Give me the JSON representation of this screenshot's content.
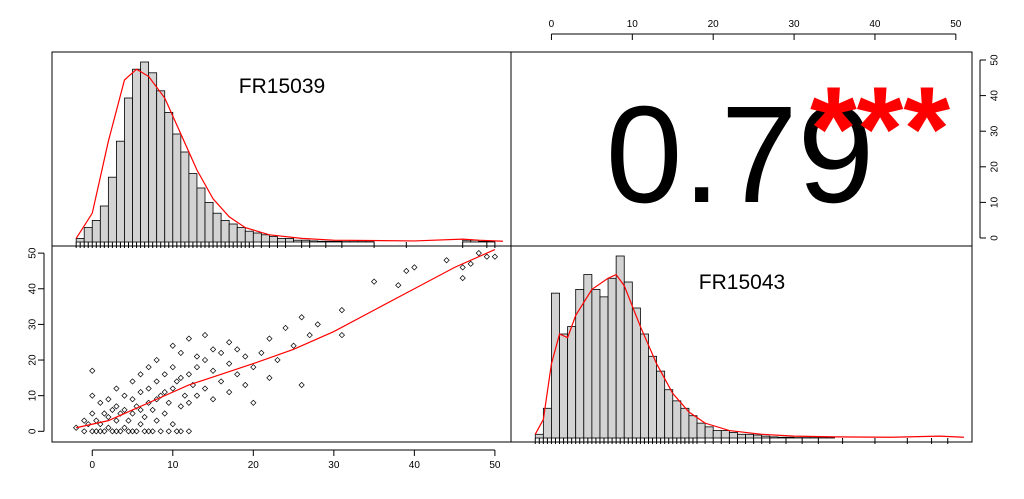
{
  "chart_data": [
    {
      "type": "histogram",
      "panel": "top-left",
      "label": "FR15039",
      "xlim": [
        -5,
        52
      ],
      "bin_width": 1,
      "bins_start": -2,
      "values": [
        1,
        4,
        6,
        10,
        18,
        28,
        40,
        48,
        50,
        47,
        42,
        36,
        30,
        25,
        19,
        15,
        11,
        8,
        6,
        5,
        4,
        3,
        2.5,
        2,
        1.5,
        1,
        1,
        0.5,
        0.5,
        0.3,
        0.2,
        0.2,
        0.2,
        0.1,
        0.1,
        0.1,
        0.1,
        0,
        0,
        0,
        0,
        0,
        0,
        0,
        0,
        0,
        0,
        0,
        0.5,
        0.5,
        0.2,
        0.2
      ],
      "density": [
        [
          -2,
          1
        ],
        [
          0,
          8
        ],
        [
          2,
          28
        ],
        [
          4,
          45
        ],
        [
          5.5,
          48
        ],
        [
          7,
          46
        ],
        [
          9,
          40
        ],
        [
          11,
          30
        ],
        [
          13,
          20
        ],
        [
          15,
          12
        ],
        [
          17,
          7
        ],
        [
          19,
          4
        ],
        [
          22,
          2
        ],
        [
          26,
          1
        ],
        [
          30,
          0.5
        ],
        [
          40,
          0.3
        ],
        [
          46,
          0.8
        ],
        [
          48,
          0.5
        ],
        [
          51,
          0.2
        ]
      ],
      "rug": [
        -2,
        -1.5,
        -1,
        -0.5,
        0,
        0.5,
        1,
        1.5,
        2,
        2.5,
        3,
        3.5,
        4,
        4.5,
        5,
        5.5,
        6,
        6.5,
        7,
        7.5,
        8,
        8.5,
        9,
        9.5,
        10,
        10.5,
        11,
        11.5,
        12,
        12.5,
        13,
        13.5,
        14,
        14.5,
        15,
        15.5,
        16,
        16.5,
        17,
        17.5,
        18,
        18.5,
        19,
        19.5,
        20,
        21,
        22,
        23,
        24,
        26,
        27,
        29,
        31,
        35,
        39,
        46,
        49,
        50
      ]
    },
    {
      "type": "text",
      "panel": "top-right",
      "value": "0.79",
      "significance": "***",
      "value_color": "#000000",
      "significance_color": "#ff0000"
    },
    {
      "type": "scatter",
      "panel": "bottom-left",
      "xlim": [
        -5,
        52
      ],
      "ylim": [
        -3,
        52
      ],
      "x_ticks": [
        0,
        10,
        20,
        30,
        40,
        50
      ],
      "y_ticks": [
        0,
        10,
        20,
        30,
        40,
        50
      ],
      "points": [
        [
          -2,
          1
        ],
        [
          -1,
          3
        ],
        [
          -1,
          0
        ],
        [
          -0.5,
          2
        ],
        [
          0,
          0
        ],
        [
          0,
          5
        ],
        [
          0,
          17
        ],
        [
          0,
          10
        ],
        [
          0.5,
          3
        ],
        [
          1,
          2
        ],
        [
          1,
          8
        ],
        [
          1,
          0
        ],
        [
          1.5,
          5
        ],
        [
          2,
          1
        ],
        [
          2,
          4
        ],
        [
          2,
          9
        ],
        [
          2.5,
          6
        ],
        [
          3,
          0
        ],
        [
          3,
          3
        ],
        [
          3,
          7
        ],
        [
          3,
          12
        ],
        [
          3.5,
          5
        ],
        [
          4,
          1
        ],
        [
          4,
          6
        ],
        [
          4,
          10
        ],
        [
          4.5,
          3
        ],
        [
          5,
          0
        ],
        [
          5,
          5
        ],
        [
          5,
          9
        ],
        [
          5,
          14
        ],
        [
          5.5,
          7
        ],
        [
          6,
          2
        ],
        [
          6,
          6
        ],
        [
          6,
          11
        ],
        [
          6,
          16
        ],
        [
          6.5,
          4
        ],
        [
          7,
          0
        ],
        [
          7,
          8
        ],
        [
          7,
          12
        ],
        [
          7,
          18
        ],
        [
          7.5,
          6
        ],
        [
          8,
          3
        ],
        [
          8,
          9
        ],
        [
          8,
          14
        ],
        [
          8,
          20
        ],
        [
          8.5,
          10
        ],
        [
          9,
          5
        ],
        [
          9,
          11
        ],
        [
          9,
          16
        ],
        [
          9.5,
          8
        ],
        [
          10,
          2
        ],
        [
          10,
          12
        ],
        [
          10,
          18
        ],
        [
          10,
          24
        ],
        [
          10.5,
          14
        ],
        [
          11,
          7
        ],
        [
          11,
          15
        ],
        [
          11,
          22
        ],
        [
          11.5,
          10
        ],
        [
          12,
          8
        ],
        [
          12,
          16
        ],
        [
          12,
          26
        ],
        [
          12.5,
          13
        ],
        [
          13,
          10
        ],
        [
          13,
          18
        ],
        [
          13,
          21
        ],
        [
          14,
          12
        ],
        [
          14,
          20
        ],
        [
          14,
          27
        ],
        [
          15,
          9
        ],
        [
          15,
          17
        ],
        [
          15,
          23
        ],
        [
          16,
          14
        ],
        [
          16,
          22
        ],
        [
          17,
          11
        ],
        [
          17,
          19
        ],
        [
          17,
          25
        ],
        [
          18,
          16
        ],
        [
          18,
          23
        ],
        [
          19,
          13
        ],
        [
          19,
          21
        ],
        [
          20,
          18
        ],
        [
          20,
          8
        ],
        [
          21,
          22
        ],
        [
          22,
          15
        ],
        [
          22,
          26
        ],
        [
          23,
          20
        ],
        [
          24,
          29
        ],
        [
          25,
          24
        ],
        [
          26,
          13
        ],
        [
          26,
          32
        ],
        [
          27,
          27
        ],
        [
          28,
          30
        ],
        [
          31,
          27
        ],
        [
          31,
          34
        ],
        [
          35,
          42
        ],
        [
          38,
          41
        ],
        [
          39,
          45
        ],
        [
          40,
          46
        ],
        [
          44,
          48
        ],
        [
          46,
          43
        ],
        [
          46,
          46
        ],
        [
          47,
          47
        ],
        [
          48,
          50
        ],
        [
          49,
          49
        ],
        [
          50,
          49
        ],
        [
          0.5,
          0
        ],
        [
          1.5,
          0
        ],
        [
          2.5,
          0
        ],
        [
          3.5,
          0
        ],
        [
          4.5,
          0
        ],
        [
          5.5,
          0
        ],
        [
          6.5,
          0
        ],
        [
          7.5,
          0
        ],
        [
          8.5,
          0
        ],
        [
          9.5,
          0
        ],
        [
          10.5,
          0
        ],
        [
          11,
          0
        ],
        [
          12,
          0
        ]
      ],
      "smoother": [
        [
          -2,
          1
        ],
        [
          2,
          3
        ],
        [
          5,
          6
        ],
        [
          8,
          9
        ],
        [
          12,
          13
        ],
        [
          16,
          16
        ],
        [
          20,
          19
        ],
        [
          25,
          23
        ],
        [
          30,
          28
        ],
        [
          35,
          34
        ],
        [
          40,
          40
        ],
        [
          45,
          46
        ],
        [
          50,
          51
        ]
      ]
    },
    {
      "type": "histogram",
      "panel": "bottom-right",
      "label": "FR15043",
      "xlim": [
        -5,
        52
      ],
      "bin_width": 1,
      "bins_start": -2,
      "values": [
        1,
        8,
        39,
        28,
        30,
        40,
        44,
        40,
        38,
        43,
        49,
        42,
        35,
        28,
        22,
        18,
        13,
        10,
        8,
        6,
        4,
        3,
        2,
        2,
        1.5,
        1,
        1,
        0.8,
        0.5,
        0.3,
        0.2,
        0.2,
        0.1,
        0.1,
        0.1,
        0.1,
        0.1,
        0,
        0,
        0,
        0,
        0,
        0,
        0,
        0,
        0,
        0,
        0,
        0,
        0,
        0
      ],
      "density": [
        [
          -2,
          1
        ],
        [
          -1,
          5
        ],
        [
          0,
          20
        ],
        [
          1,
          28
        ],
        [
          2,
          27
        ],
        [
          3,
          33
        ],
        [
          5,
          40
        ],
        [
          7,
          43
        ],
        [
          8,
          44
        ],
        [
          9,
          41
        ],
        [
          11,
          30
        ],
        [
          13,
          20
        ],
        [
          15,
          12
        ],
        [
          17,
          7
        ],
        [
          19,
          4
        ],
        [
          22,
          2
        ],
        [
          26,
          1
        ],
        [
          30,
          0.5
        ],
        [
          35,
          0.3
        ],
        [
          42,
          0.2
        ],
        [
          48,
          0.5
        ],
        [
          51,
          0.2
        ]
      ],
      "rug": [
        -2,
        -1.5,
        -1,
        -0.5,
        0,
        0.5,
        1,
        1.5,
        2,
        2.5,
        3,
        3.5,
        4,
        4.5,
        5,
        5.5,
        6,
        6.5,
        7,
        7.5,
        8,
        8.5,
        9,
        9.5,
        10,
        10.5,
        11,
        11.5,
        12,
        12.5,
        13,
        13.5,
        14,
        14.5,
        15,
        15.5,
        16,
        16.5,
        17,
        17.5,
        18,
        19,
        20,
        21,
        22,
        23,
        24,
        25,
        26,
        27,
        29,
        31,
        33,
        36,
        40,
        44,
        47,
        49
      ]
    }
  ],
  "axes": {
    "top_ticks": [
      "0",
      "10",
      "20",
      "30",
      "40",
      "50"
    ],
    "right_ticks": [
      "0",
      "10",
      "20",
      "30",
      "40",
      "50"
    ],
    "left_ticks": [
      "0",
      "10",
      "20",
      "30",
      "40",
      "50"
    ],
    "bottom_ticks": [
      "0",
      "10",
      "20",
      "30",
      "40",
      "50"
    ]
  },
  "colors": {
    "bar_fill": "#d3d3d3",
    "bar_stroke": "#000000",
    "density_line": "#ff0000",
    "smoother_line": "#ff0000",
    "frame": "#000000"
  }
}
